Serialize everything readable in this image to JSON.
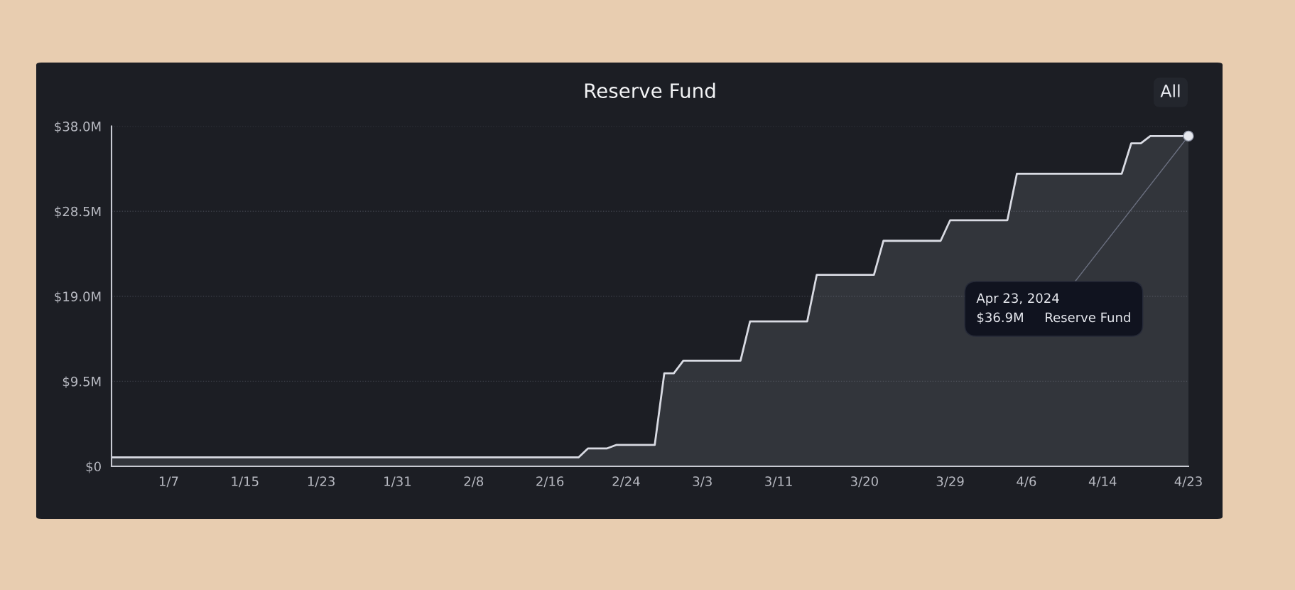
{
  "chart_data": {
    "type": "area",
    "title": "Reserve Fund",
    "x": [
      "2024-01-01",
      "2024-02-19",
      "2024-02-20",
      "2024-02-22",
      "2024-02-23",
      "2024-02-27",
      "2024-02-28",
      "2024-02-29",
      "2024-03-01",
      "2024-03-07",
      "2024-03-08",
      "2024-03-14",
      "2024-03-15",
      "2024-03-21",
      "2024-03-22",
      "2024-03-28",
      "2024-03-29",
      "2024-04-04",
      "2024-04-05",
      "2024-04-16",
      "2024-04-17",
      "2024-04-18",
      "2024-04-19",
      "2024-04-23"
    ],
    "series": [
      {
        "color": "#d9dbe3",
        "values": [
          1.0,
          1.0,
          2.0,
          2.0,
          2.4,
          2.4,
          10.4,
          10.4,
          11.8,
          11.8,
          16.2,
          16.2,
          21.4,
          21.4,
          25.2,
          25.2,
          27.5,
          27.5,
          32.7,
          32.7,
          36.1,
          36.1,
          36.9,
          36.9
        ]
      }
    ],
    "xlim": [
      "2024-01-01",
      "2024-04-23"
    ],
    "xticks": [
      {
        "value": "2024-01-07",
        "label": "1/7"
      },
      {
        "value": "2024-01-15",
        "label": "1/15"
      },
      {
        "value": "2024-01-23",
        "label": "1/23"
      },
      {
        "value": "2024-01-31",
        "label": "1/31"
      },
      {
        "value": "2024-02-08",
        "label": "2/8"
      },
      {
        "value": "2024-02-16",
        "label": "2/16"
      },
      {
        "value": "2024-02-24",
        "label": "2/24"
      },
      {
        "value": "2024-03-03",
        "label": "3/3"
      },
      {
        "value": "2024-03-11",
        "label": "3/11"
      },
      {
        "value": "2024-03-20",
        "label": "3/20"
      },
      {
        "value": "2024-03-29",
        "label": "3/29"
      },
      {
        "value": "2024-04-06",
        "label": "4/6"
      },
      {
        "value": "2024-04-14",
        "label": "4/14"
      },
      {
        "value": "2024-04-23",
        "label": "4/23"
      }
    ],
    "ylim": [
      0,
      38
    ],
    "yticks": [
      {
        "value": 0,
        "label": "$0"
      },
      {
        "value": 9.5,
        "label": "$9.5M"
      },
      {
        "value": 19,
        "label": "$19.0M"
      },
      {
        "value": 28.5,
        "label": "$28.5M"
      },
      {
        "value": 38,
        "label": "$38.0M"
      }
    ],
    "grid": "y",
    "annotations": [
      "All",
      {
        "text": "Apr 23, 2024\n$36.9M     Reserve Fund",
        "x": "2024-04-23",
        "y": 36.9
      }
    ]
  }
}
